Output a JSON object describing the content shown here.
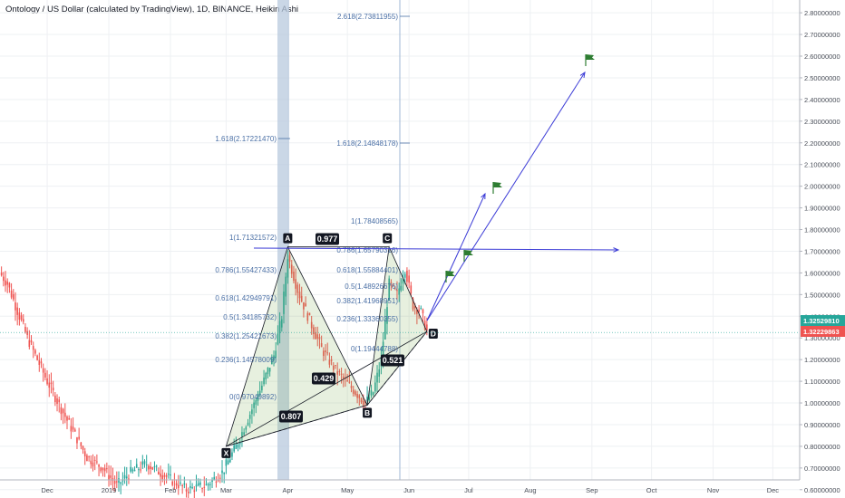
{
  "chart_title": "Ontology / US Dollar (calculated by TradingView), 1D, BINANCE, Heikin Ashi",
  "colors": {
    "up": "#26a69a",
    "down": "#ef5350",
    "pattern": "#131722",
    "fib": "#4a6fa5",
    "arrow": "#3b3bd6",
    "flag": "#2e7d32",
    "highlight": "#b8c9dd",
    "price_current": "#ef5350",
    "price_prev": "#26a69a"
  },
  "chart_data": {
    "type": "candlestick",
    "x_tick_labels": [
      "Dec",
      "2019",
      "Feb",
      "Mar",
      "Apr",
      "May",
      "Jun",
      "Jul",
      "Aug",
      "Sep",
      "Oct",
      "Nov",
      "Dec"
    ],
    "y_tick_labels": [
      "0.60000000",
      "0.70000000",
      "0.80000000",
      "0.90000000",
      "1.00000000",
      "1.10000000",
      "1.20000000",
      "1.30000000",
      "1.40000000",
      "1.50000000",
      "1.60000000",
      "1.70000000",
      "1.80000000",
      "1.90000000",
      "2.00000000",
      "2.10000000",
      "2.20000000",
      "2.30000000",
      "2.40000000",
      "2.50000000",
      "2.60000000",
      "2.70000000",
      "2.80000000"
    ],
    "ylim": [
      0.57,
      2.83
    ],
    "price_labels": [
      {
        "value": 1.3252981,
        "text": "1.32529810"
      },
      {
        "value": 1.32229863,
        "text": "1.32229863"
      }
    ],
    "harmonic_points": [
      {
        "label": "X",
        "date": "2019-03-01",
        "price": 0.8
      },
      {
        "label": "A",
        "date": "2019-04-01",
        "price": 1.72
      },
      {
        "label": "B",
        "date": "2019-05-11",
        "price": 0.99
      },
      {
        "label": "C",
        "date": "2019-05-22",
        "price": 1.72
      },
      {
        "label": "D",
        "date": "2019-06-10",
        "price": 1.33
      }
    ],
    "ratios": [
      {
        "text": "0.977"
      },
      {
        "text": "0.429"
      },
      {
        "text": "0.521"
      },
      {
        "text": "0.807"
      }
    ],
    "fib_left": [
      "1.618(2.17221470)",
      "1(1.71321572)",
      "0.786(1.55427433)",
      "0.618(1.42949791)",
      "0.5(1.34185732)",
      "0.382(1.25421673)",
      "0.236(1.14578009)",
      "0(0.97049892)"
    ],
    "fib_right": [
      "2.618(2.73811955)",
      "1.618(2.14848178)",
      "1(1.78408565)",
      "0.786(1.65790316)",
      "0.618(1.55884401)",
      "0.5(1.48926676)",
      "0.382(1.41968951)",
      "0.236(1.33360355)",
      "0(1.19444788)"
    ]
  }
}
